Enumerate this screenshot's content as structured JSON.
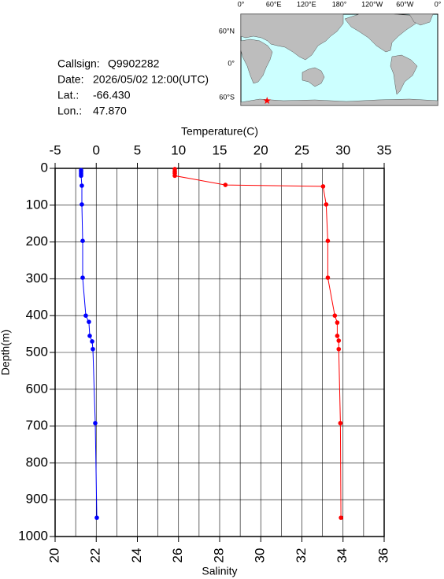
{
  "station": {
    "rows": [
      {
        "label": "Callsign:",
        "value": "Q9902282"
      },
      {
        "label": "Date:",
        "value": "2026/05/02 12:00(UTC)"
      },
      {
        "label": "Lat.:",
        "value": "-66.430"
      },
      {
        "label": "Lon.:",
        "value": "47.870"
      }
    ]
  },
  "map": {
    "lon_labels": [
      "0°",
      "60°E",
      "120°E",
      "180°",
      "120°W",
      "60°W",
      "0°"
    ],
    "lat_labels": [
      "60°N",
      "0°",
      "60°S"
    ],
    "marker_color": "#ff0000"
  },
  "chart_data": {
    "type": "profile",
    "x_label": "Salinity",
    "x2_label": "Temperature(C)",
    "y_label": "Depth(m)",
    "xlim": [
      20,
      36
    ],
    "xticks": [
      20,
      22,
      24,
      26,
      28,
      30,
      32,
      34,
      36
    ],
    "xminor": [
      21,
      23,
      25,
      27,
      29,
      31,
      33,
      35
    ],
    "x2lim": [
      -5,
      35
    ],
    "x2ticks": [
      -5,
      0,
      5,
      10,
      15,
      20,
      25,
      30,
      35
    ],
    "ylim": [
      0,
      1000
    ],
    "yticks": [
      0,
      100,
      200,
      300,
      400,
      500,
      600,
      700,
      800,
      900,
      1000
    ],
    "y_inverted": true,
    "grid": true,
    "series": [
      {
        "axis": "x2",
        "color": "#0000ff",
        "depth": [
          5,
          10,
          15,
          20,
          47,
          98,
          197,
          297,
          400,
          417,
          455,
          470,
          491,
          692,
          949
        ],
        "values": [
          -1.84,
          -1.84,
          -1.84,
          -1.84,
          -1.75,
          -1.75,
          -1.65,
          -1.65,
          -1.27,
          -0.89,
          -0.79,
          -0.5,
          -0.41,
          -0.12,
          0.07
        ]
      },
      {
        "axis": "x",
        "color": "#ff0000",
        "depth": [
          2,
          8,
          13,
          20,
          45,
          49,
          98,
          197,
          297,
          400,
          419,
          455,
          468,
          491,
          692,
          949
        ],
        "values": [
          25.82,
          25.82,
          25.82,
          25.82,
          28.28,
          33.03,
          33.18,
          33.26,
          33.26,
          33.6,
          33.72,
          33.72,
          33.79,
          33.79,
          33.87,
          33.9
        ]
      }
    ]
  }
}
